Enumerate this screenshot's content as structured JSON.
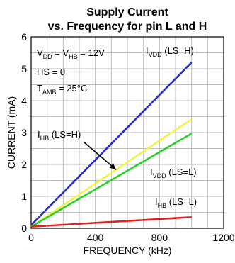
{
  "chart_data": {
    "type": "line",
    "title": "Supply Current",
    "subtitle": "vs. Frequency for pin L and H",
    "xlabel": "FREQUENCY (kHz)",
    "ylabel": "CURRENT (mA)",
    "xlim": [
      0,
      1200
    ],
    "ylim": [
      0,
      6
    ],
    "xticks": [
      0,
      400,
      800,
      1200
    ],
    "yticks": [
      0,
      1,
      2,
      3,
      4,
      5,
      6
    ],
    "grid": true,
    "conditions": {
      "vdd_vhb": "V_DD = V_HB = 12V",
      "hs": "HS = 0",
      "tamb": "T_AMB = 25°C"
    },
    "series": [
      {
        "name": "I_VDD (LS=H)",
        "color": "#2b2bd6",
        "x": [
          0,
          1000
        ],
        "y": [
          0.1,
          5.2
        ]
      },
      {
        "name": "I_HB (LS=H)",
        "color": "#f2f24a",
        "x": [
          0,
          1000
        ],
        "y": [
          0.05,
          3.42
        ]
      },
      {
        "name": "I_VDD (LS=L)",
        "color": "#28d028",
        "x": [
          0,
          1000
        ],
        "y": [
          0.05,
          2.97
        ]
      },
      {
        "name": "I_HB (LS=L)",
        "color": "#e02020",
        "x": [
          0,
          1000
        ],
        "y": [
          0.05,
          0.35
        ]
      }
    ],
    "annotations": [
      {
        "main": "I",
        "sub": "VDD",
        "rest": " (LS=H)",
        "target": "I_VDD (LS=H)"
      },
      {
        "main": "I",
        "sub": "HB",
        "rest": " (LS=H)",
        "target": "I_HB (LS=H)",
        "arrow": true
      },
      {
        "main": "I",
        "sub": "VDD",
        "rest": " (LS=L)",
        "target": "I_VDD (LS=L)"
      },
      {
        "main": "I",
        "sub": "HB",
        "rest": " (LS=L)",
        "target": "I_HB (LS=L)"
      }
    ]
  }
}
